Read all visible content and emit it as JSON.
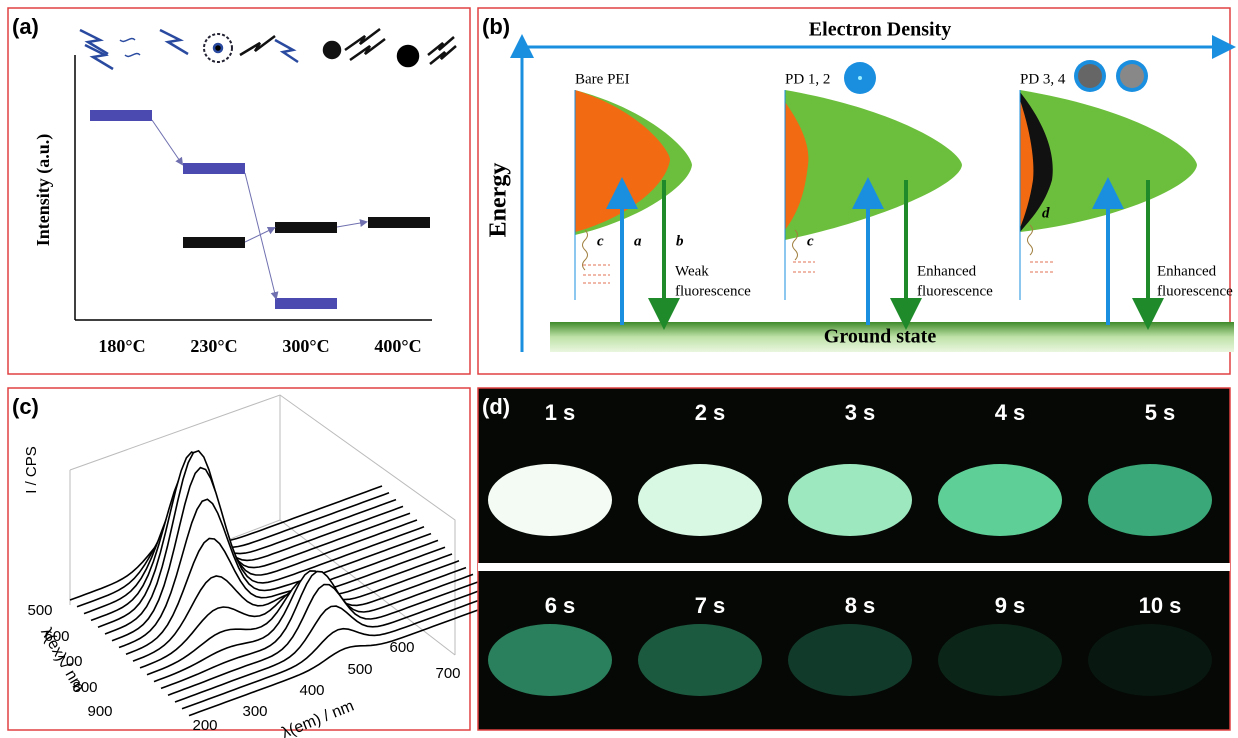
{
  "panel_a": {
    "label": "(a)",
    "y_axis_label": "Intensity (a.u.)",
    "categories": [
      "180°C",
      "230°C",
      "300°C",
      "400°C"
    ]
  },
  "panel_b": {
    "label": "(b)",
    "x_axis_label": "Electron Density",
    "y_axis_label": "Energy",
    "baseline_label": "Ground state",
    "groups": [
      "Bare PEI",
      "PD 1, 2",
      "PD 3, 4"
    ],
    "arrow_labels": [
      "c",
      "a",
      "b",
      "c",
      "d"
    ],
    "notes": [
      [
        "Weak",
        "fluorescence"
      ],
      [
        "Enhanced",
        "fluorescence"
      ],
      [
        "Enhanced",
        "fluorescence"
      ]
    ]
  },
  "panel_c": {
    "label": "(c)",
    "z_axis_label": "I / CPS",
    "ex_axis_label": "λ(ex) / nm",
    "em_axis_label": "λ(em) / nm",
    "ex_ticks": [
      500,
      600,
      700,
      800,
      900
    ],
    "em_ticks": [
      200,
      300,
      400,
      500,
      600,
      700
    ]
  },
  "panel_d": {
    "label": "(d)",
    "frames": [
      "1 s",
      "2 s",
      "3 s",
      "4 s",
      "5 s",
      "6 s",
      "7 s",
      "8 s",
      "9 s",
      "10 s"
    ]
  }
}
